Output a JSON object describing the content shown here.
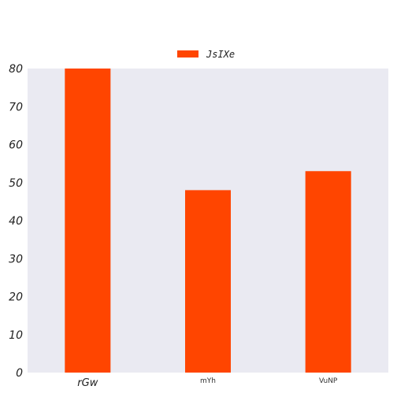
{
  "chart_data": {
    "type": "bar",
    "categories": [
      "rGw",
      "mYh",
      "VuNP"
    ],
    "series": [
      {
        "name": "JsIXe",
        "values": [
          80,
          48,
          53
        ]
      }
    ],
    "ylim": [
      0,
      80
    ],
    "yticks": [
      0,
      10,
      20,
      30,
      40,
      50,
      60,
      70,
      80
    ],
    "grid": false,
    "legend_position": "top-center",
    "colors": {
      "bar": "#ff4500",
      "plot_background": "#eaeaf2"
    }
  }
}
